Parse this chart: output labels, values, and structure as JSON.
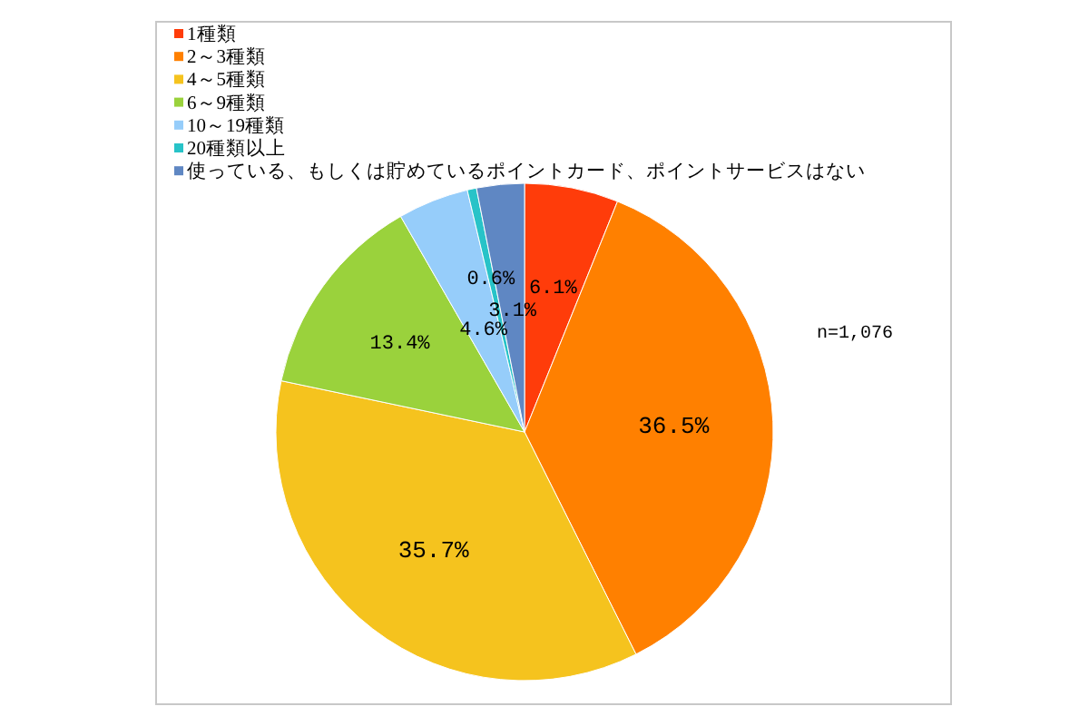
{
  "chart_data": {
    "type": "pie",
    "categories": [
      "1種類",
      "2～3種類",
      "4～5種類",
      "6～9種類",
      "10～19種類",
      "20種類以上",
      "使っている、もしくは貯めているポイントカード、ポイントサービスはない"
    ],
    "values": [
      6.1,
      36.5,
      35.7,
      13.4,
      4.6,
      0.6,
      3.1
    ],
    "colors": [
      "#ff3c0a",
      "#ff8000",
      "#f5c31e",
      "#9ad23c",
      "#96cdfa",
      "#28c3c8",
      "#5f87c3"
    ],
    "value_labels": [
      "6.1%",
      "36.5%",
      "35.7%",
      "13.4%",
      "4.6%",
      "0.6%",
      "3.1%"
    ],
    "legend": "top left",
    "annotations": [
      "n=1,076"
    ]
  }
}
